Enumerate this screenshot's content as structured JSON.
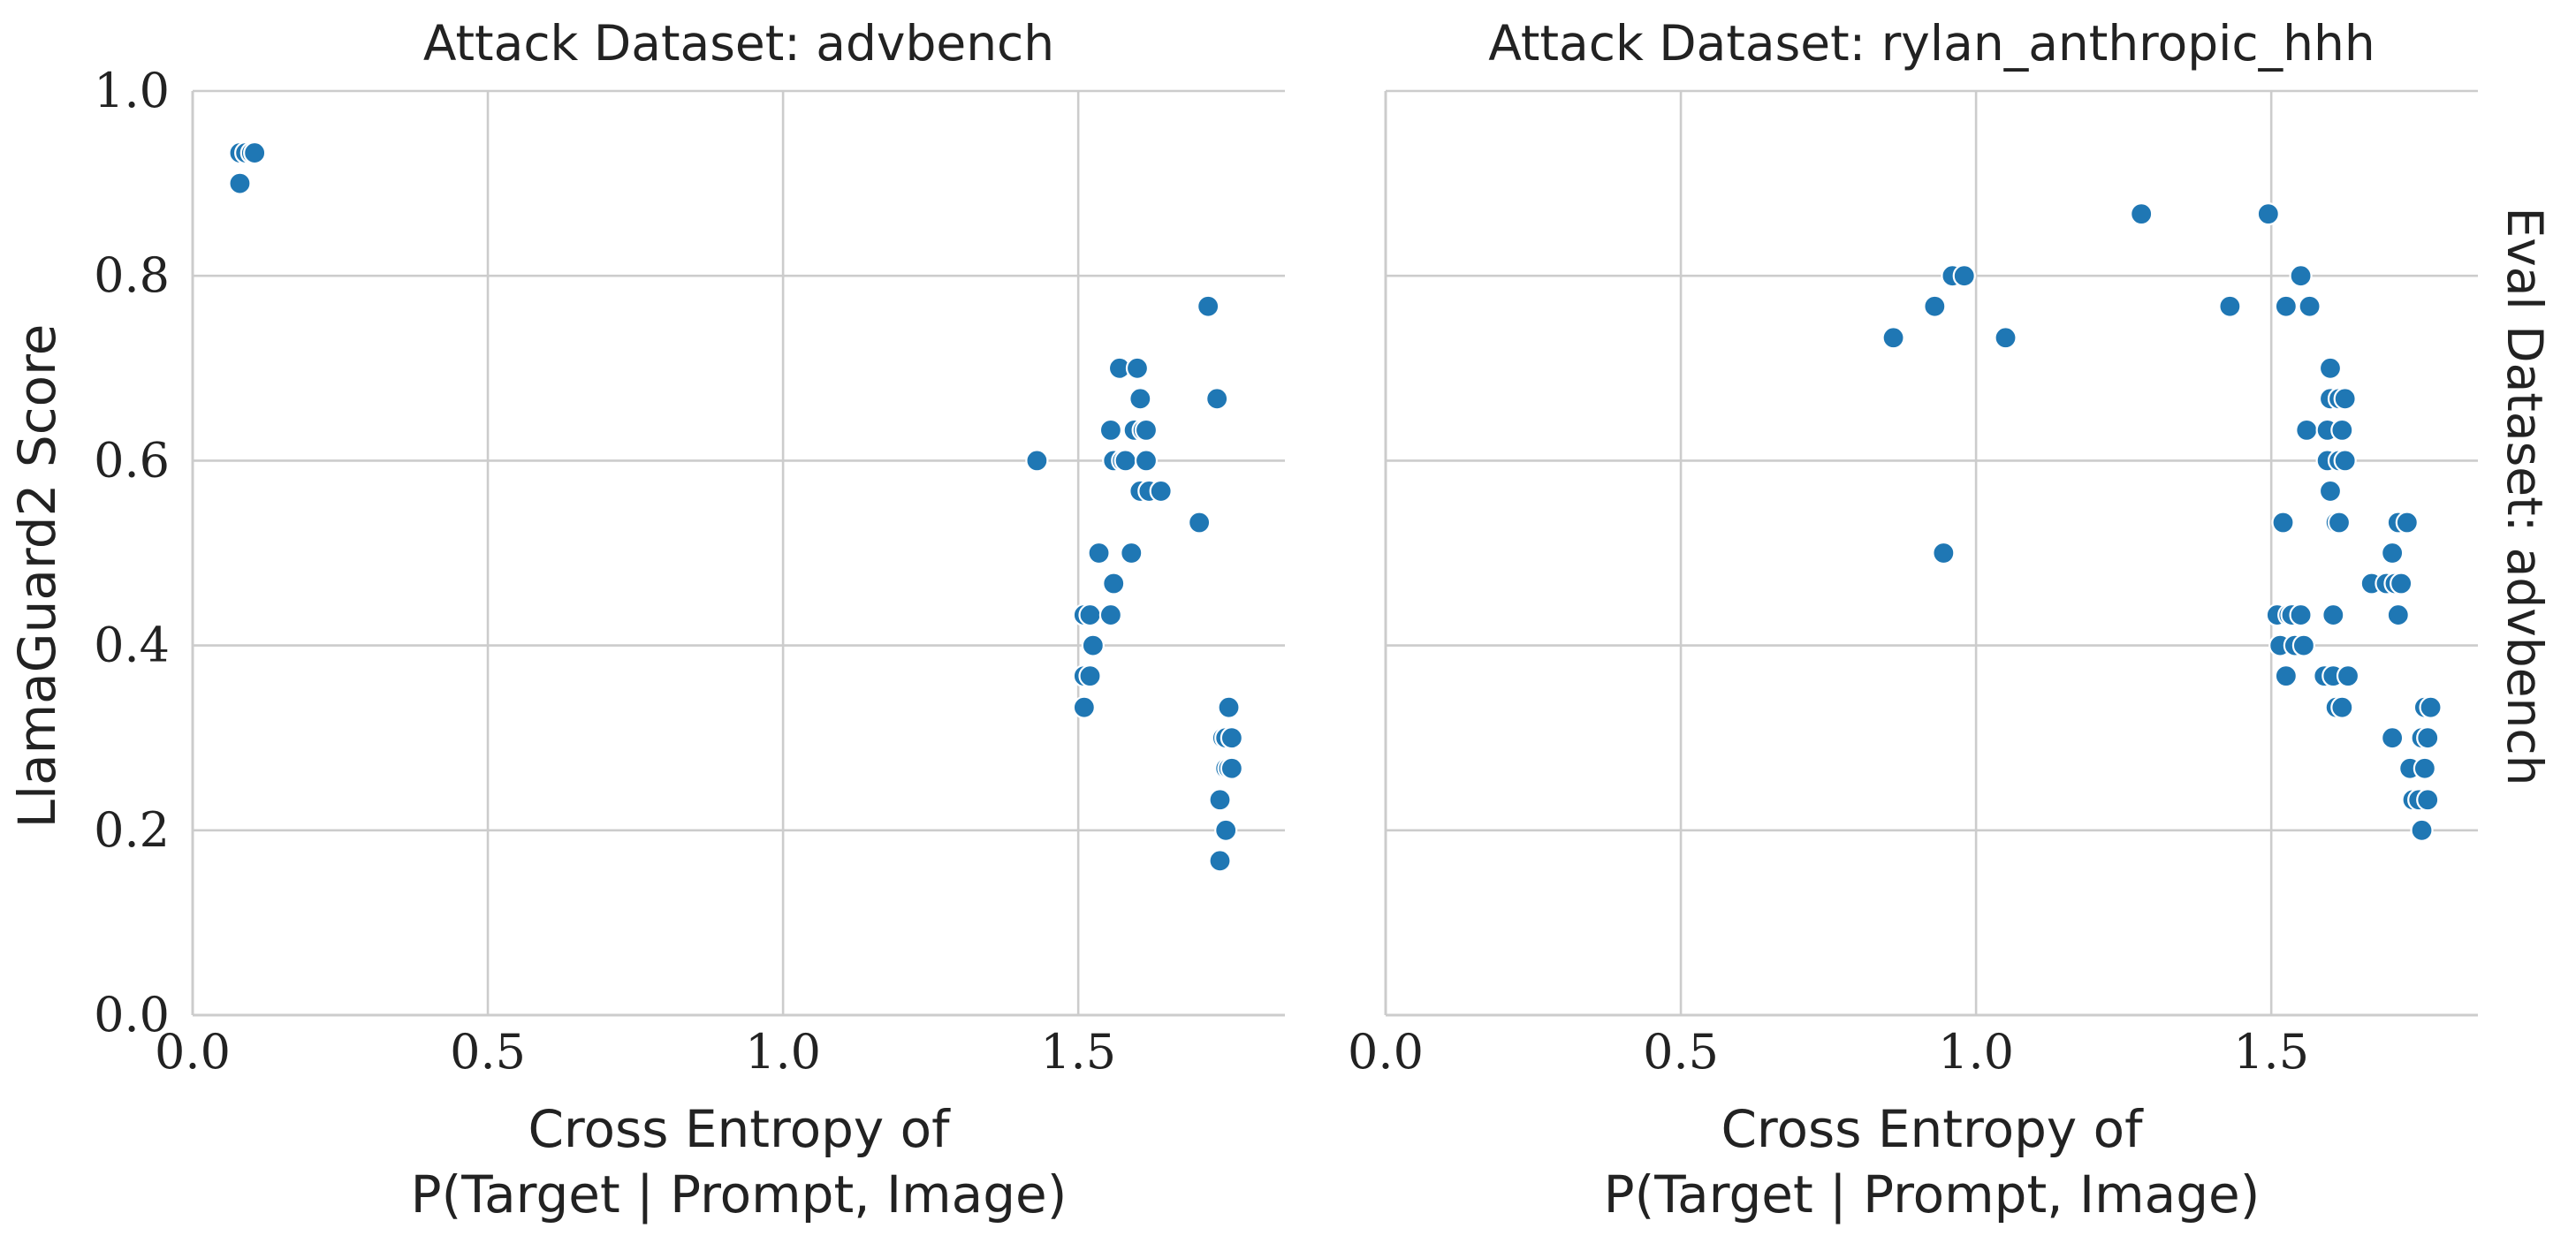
{
  "chart_data": [
    {
      "type": "scatter",
      "title": "Attack Dataset: advbench",
      "xlabel": [
        "Cross Entropy of",
        "P(Target | Prompt, Image)"
      ],
      "ylabel": "LlamaGuard2 Score",
      "xlim": [
        0,
        1.85
      ],
      "ylim": [
        0,
        1.0
      ],
      "xticks": [
        "0.0",
        "0.5",
        "1.0",
        "1.5"
      ],
      "yticks": [
        "0.0",
        "0.2",
        "0.4",
        "0.6",
        "0.8",
        "1.0"
      ],
      "grid": true,
      "points": [
        {
          "x": 0.08,
          "y": 0.933
        },
        {
          "x": 0.09,
          "y": 0.933
        },
        {
          "x": 0.1,
          "y": 0.933
        },
        {
          "x": 0.105,
          "y": 0.933
        },
        {
          "x": 0.08,
          "y": 0.9
        },
        {
          "x": 1.43,
          "y": 0.6
        },
        {
          "x": 1.51,
          "y": 0.433
        },
        {
          "x": 1.52,
          "y": 0.433
        },
        {
          "x": 1.51,
          "y": 0.367
        },
        {
          "x": 1.52,
          "y": 0.367
        },
        {
          "x": 1.51,
          "y": 0.333
        },
        {
          "x": 1.525,
          "y": 0.4
        },
        {
          "x": 1.535,
          "y": 0.5
        },
        {
          "x": 1.555,
          "y": 0.433
        },
        {
          "x": 1.56,
          "y": 0.467
        },
        {
          "x": 1.555,
          "y": 0.633
        },
        {
          "x": 1.56,
          "y": 0.6
        },
        {
          "x": 1.57,
          "y": 0.7
        },
        {
          "x": 1.575,
          "y": 0.6
        },
        {
          "x": 1.58,
          "y": 0.6
        },
        {
          "x": 1.59,
          "y": 0.5
        },
        {
          "x": 1.595,
          "y": 0.633
        },
        {
          "x": 1.6,
          "y": 0.7
        },
        {
          "x": 1.605,
          "y": 0.667
        },
        {
          "x": 1.605,
          "y": 0.567
        },
        {
          "x": 1.61,
          "y": 0.633
        },
        {
          "x": 1.615,
          "y": 0.633
        },
        {
          "x": 1.615,
          "y": 0.6
        },
        {
          "x": 1.62,
          "y": 0.567
        },
        {
          "x": 1.64,
          "y": 0.567
        },
        {
          "x": 1.705,
          "y": 0.533
        },
        {
          "x": 1.72,
          "y": 0.767
        },
        {
          "x": 1.735,
          "y": 0.667
        },
        {
          "x": 1.74,
          "y": 0.233
        },
        {
          "x": 1.74,
          "y": 0.167
        },
        {
          "x": 1.745,
          "y": 0.3
        },
        {
          "x": 1.75,
          "y": 0.3
        },
        {
          "x": 1.75,
          "y": 0.267
        },
        {
          "x": 1.75,
          "y": 0.2
        },
        {
          "x": 1.755,
          "y": 0.333
        },
        {
          "x": 1.755,
          "y": 0.267
        },
        {
          "x": 1.76,
          "y": 0.3
        },
        {
          "x": 1.76,
          "y": 0.267
        }
      ]
    },
    {
      "type": "scatter",
      "title": "Attack Dataset: rylan_anthropic_hhh",
      "xlabel": [
        "Cross Entropy of",
        "P(Target | Prompt, Image)"
      ],
      "row_label": "Eval Dataset: advbench",
      "xlim": [
        0,
        1.85
      ],
      "ylim": [
        0,
        1.0
      ],
      "xticks": [
        "0.0",
        "0.5",
        "1.0",
        "1.5"
      ],
      "grid": true,
      "points": [
        {
          "x": 0.86,
          "y": 0.733
        },
        {
          "x": 0.93,
          "y": 0.767
        },
        {
          "x": 0.945,
          "y": 0.5
        },
        {
          "x": 0.96,
          "y": 0.8
        },
        {
          "x": 0.98,
          "y": 0.8
        },
        {
          "x": 1.05,
          "y": 0.733
        },
        {
          "x": 1.28,
          "y": 0.867
        },
        {
          "x": 1.43,
          "y": 0.767
        },
        {
          "x": 1.495,
          "y": 0.867
        },
        {
          "x": 1.51,
          "y": 0.433
        },
        {
          "x": 1.515,
          "y": 0.4
        },
        {
          "x": 1.52,
          "y": 0.533
        },
        {
          "x": 1.525,
          "y": 0.767
        },
        {
          "x": 1.525,
          "y": 0.367
        },
        {
          "x": 1.53,
          "y": 0.433
        },
        {
          "x": 1.535,
          "y": 0.433
        },
        {
          "x": 1.54,
          "y": 0.4
        },
        {
          "x": 1.55,
          "y": 0.8
        },
        {
          "x": 1.55,
          "y": 0.433
        },
        {
          "x": 1.555,
          "y": 0.4
        },
        {
          "x": 1.56,
          "y": 0.633
        },
        {
          "x": 1.565,
          "y": 0.767
        },
        {
          "x": 1.59,
          "y": 0.367
        },
        {
          "x": 1.595,
          "y": 0.6
        },
        {
          "x": 1.595,
          "y": 0.633
        },
        {
          "x": 1.6,
          "y": 0.7
        },
        {
          "x": 1.6,
          "y": 0.667
        },
        {
          "x": 1.6,
          "y": 0.567
        },
        {
          "x": 1.605,
          "y": 0.433
        },
        {
          "x": 1.605,
          "y": 0.367
        },
        {
          "x": 1.61,
          "y": 0.533
        },
        {
          "x": 1.61,
          "y": 0.333
        },
        {
          "x": 1.615,
          "y": 0.667
        },
        {
          "x": 1.615,
          "y": 0.6
        },
        {
          "x": 1.615,
          "y": 0.533
        },
        {
          "x": 1.62,
          "y": 0.633
        },
        {
          "x": 1.62,
          "y": 0.333
        },
        {
          "x": 1.625,
          "y": 0.667
        },
        {
          "x": 1.625,
          "y": 0.6
        },
        {
          "x": 1.63,
          "y": 0.367
        },
        {
          "x": 1.67,
          "y": 0.467
        },
        {
          "x": 1.695,
          "y": 0.467
        },
        {
          "x": 1.705,
          "y": 0.5
        },
        {
          "x": 1.705,
          "y": 0.3
        },
        {
          "x": 1.71,
          "y": 0.467
        },
        {
          "x": 1.715,
          "y": 0.533
        },
        {
          "x": 1.715,
          "y": 0.433
        },
        {
          "x": 1.72,
          "y": 0.467
        },
        {
          "x": 1.73,
          "y": 0.533
        },
        {
          "x": 1.735,
          "y": 0.267
        },
        {
          "x": 1.74,
          "y": 0.233
        },
        {
          "x": 1.75,
          "y": 0.233
        },
        {
          "x": 1.755,
          "y": 0.2
        },
        {
          "x": 1.755,
          "y": 0.3
        },
        {
          "x": 1.76,
          "y": 0.333
        },
        {
          "x": 1.76,
          "y": 0.267
        },
        {
          "x": 1.765,
          "y": 0.233
        },
        {
          "x": 1.765,
          "y": 0.3
        },
        {
          "x": 1.77,
          "y": 0.333
        }
      ]
    }
  ]
}
